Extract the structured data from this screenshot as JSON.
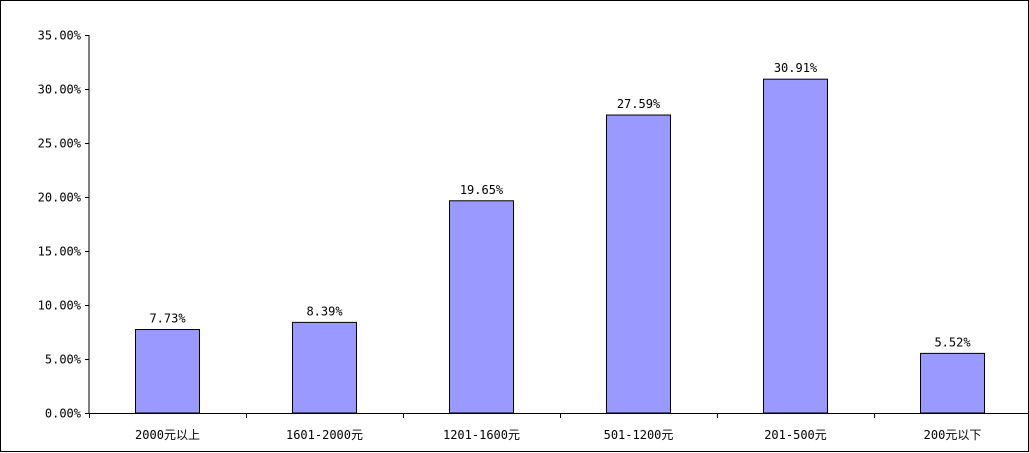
{
  "chart_data": {
    "type": "bar",
    "categories": [
      "2000元以上",
      "1601-2000元",
      "1201-1600元",
      "501-1200元",
      "201-500元",
      "200元以下"
    ],
    "values": [
      7.73,
      8.39,
      19.65,
      27.59,
      30.91,
      5.52
    ],
    "data_labels": [
      "7.73%",
      "8.39%",
      "19.65%",
      "27.59%",
      "30.91%",
      "5.52%"
    ],
    "y_tick_labels": [
      "0.00%",
      "5.00%",
      "10.00%",
      "15.00%",
      "20.00%",
      "25.00%",
      "30.00%",
      "35.00%"
    ],
    "ylim": [
      0,
      35
    ],
    "y_tick_step": 5,
    "grid": false,
    "legend": "none",
    "bar_color": "#9999ff",
    "bar_stroke": "#000000"
  }
}
